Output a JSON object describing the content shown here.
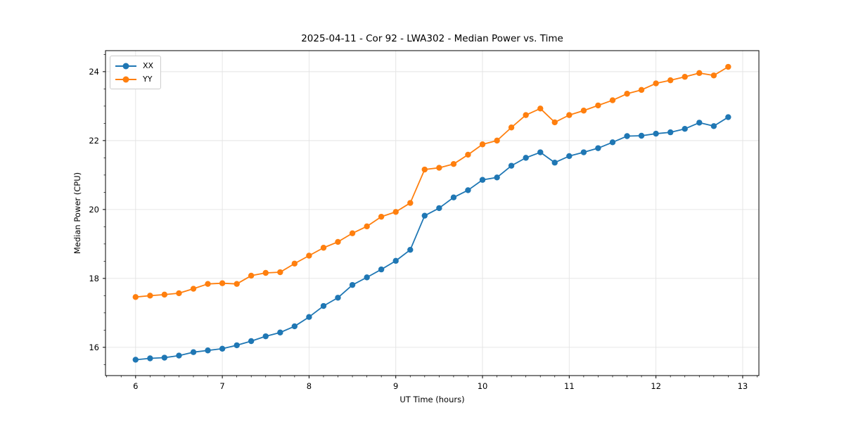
{
  "title": "2025-04-11 - Cor 92 - LWA302 - Median Power vs. Time",
  "colors": {
    "series_xx": "#1f77b4",
    "series_yy": "#ff7f0e",
    "grid": "#e3e3e3",
    "spine": "#000000",
    "text": "#000000",
    "legend_border": "#cccccc",
    "background": "#ffffff"
  },
  "chart_data": {
    "type": "line",
    "title": "2025-04-11 - Cor 92 - LWA302 - Median Power vs. Time",
    "xlabel": "UT Time (hours)",
    "ylabel": "Median Power (CPU)",
    "x_ticks": [
      6,
      7,
      8,
      9,
      10,
      11,
      12,
      13
    ],
    "y_ticks": [
      16,
      18,
      20,
      22,
      24
    ],
    "xlim": [
      5.653,
      13.187
    ],
    "ylim": [
      15.18,
      24.61
    ],
    "x_minor_step": 0.1667,
    "y_minor_step": 0.5,
    "grid": true,
    "legend_position": "upper left",
    "x": [
      6.0,
      6.167,
      6.333,
      6.5,
      6.667,
      6.833,
      7.0,
      7.167,
      7.333,
      7.5,
      7.667,
      7.833,
      8.0,
      8.167,
      8.333,
      8.5,
      8.667,
      8.833,
      9.0,
      9.167,
      9.333,
      9.5,
      9.667,
      9.833,
      10.0,
      10.167,
      10.333,
      10.5,
      10.667,
      10.833,
      11.0,
      11.167,
      11.333,
      11.5,
      11.667,
      11.833,
      12.0,
      12.167,
      12.333,
      12.5,
      12.667,
      12.833
    ],
    "series": [
      {
        "name": "XX",
        "color": "#1f77b4",
        "values": [
          15.64,
          15.68,
          15.7,
          15.76,
          15.86,
          15.91,
          15.96,
          16.06,
          16.18,
          16.32,
          16.43,
          16.61,
          16.88,
          17.2,
          17.44,
          17.81,
          18.03,
          18.26,
          18.51,
          18.83,
          19.82,
          20.04,
          20.35,
          20.56,
          20.86,
          20.93,
          21.27,
          21.5,
          21.66,
          21.36,
          21.55,
          21.66,
          21.78,
          21.95,
          22.13,
          22.14,
          22.2,
          22.24,
          22.34,
          22.52,
          22.42,
          22.68
        ]
      },
      {
        "name": "YY",
        "color": "#ff7f0e",
        "values": [
          17.46,
          17.5,
          17.53,
          17.57,
          17.7,
          17.84,
          17.86,
          17.84,
          18.08,
          18.16,
          18.18,
          18.43,
          18.66,
          18.89,
          19.06,
          19.31,
          19.51,
          19.79,
          19.93,
          20.19,
          21.16,
          21.21,
          21.32,
          21.59,
          21.89,
          22.0,
          22.38,
          22.74,
          22.93,
          22.53,
          22.74,
          22.87,
          23.02,
          23.17,
          23.36,
          23.47,
          23.66,
          23.75,
          23.85,
          23.96,
          23.89,
          24.14
        ]
      }
    ]
  }
}
